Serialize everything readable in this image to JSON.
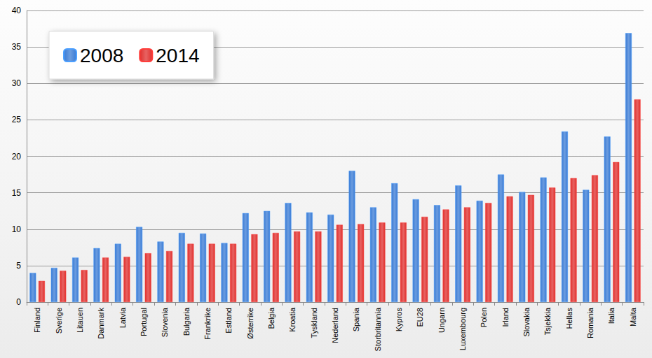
{
  "chart_data": {
    "type": "bar",
    "categories": [
      "Finland",
      "Sverige",
      "Litauen",
      "Danmark",
      "Latvia",
      "Portugal",
      "Slovenia",
      "Bulgaria",
      "Frankrike",
      "Estland",
      "Østerrike",
      "Belgia",
      "Kroatia",
      "Tyskland",
      "Nederland",
      "Spania",
      "Storbritannia",
      "Kypros",
      "EU28",
      "Ungarn",
      "Luxembourg",
      "Polen",
      "Irland",
      "Slovakia",
      "Tsjekkia",
      "Hellas",
      "Romania",
      "Italia",
      "Malta"
    ],
    "series": [
      {
        "name": "2008",
        "color": "#3a7bd5",
        "values": [
          4.0,
          4.7,
          6.1,
          7.4,
          8.0,
          10.3,
          8.3,
          9.5,
          9.4,
          8.1,
          12.2,
          12.5,
          13.6,
          12.3,
          12.0,
          18.0,
          13.0,
          16.3,
          14.1,
          13.3,
          16.0,
          13.9,
          17.5,
          15.1,
          17.1,
          23.4,
          15.4,
          22.7,
          36.9
        ]
      },
      {
        "name": "2014",
        "color": "#e0302e",
        "values": [
          2.9,
          4.3,
          4.4,
          6.1,
          6.2,
          6.7,
          7.0,
          8.0,
          8.0,
          8.0,
          9.3,
          9.5,
          9.7,
          9.7,
          10.6,
          10.7,
          10.9,
          10.9,
          11.7,
          12.7,
          13.0,
          13.6,
          14.5,
          14.7,
          15.7,
          17.0,
          17.4,
          19.2,
          27.8
        ]
      }
    ],
    "ylim": [
      0,
      40
    ],
    "yticks": [
      0,
      5,
      10,
      15,
      20,
      25,
      30,
      35,
      40
    ],
    "grid": true,
    "legend": "upper left"
  }
}
